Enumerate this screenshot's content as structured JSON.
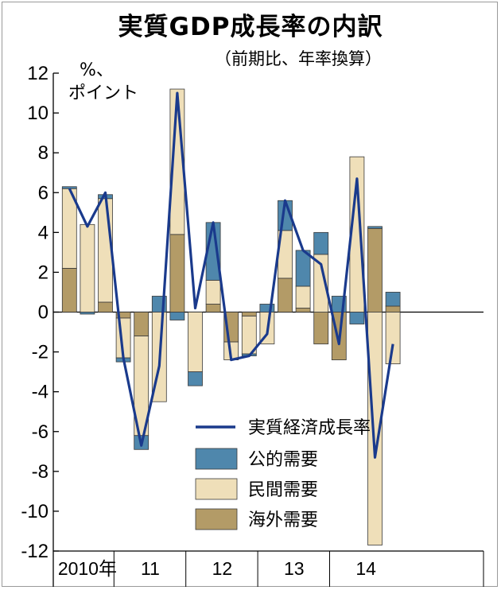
{
  "title": "実質GDP成長率の内訳",
  "subtitle": "（前期比、年率換算）",
  "chart_data": {
    "type": "bar",
    "stacked": true,
    "unit_label": [
      "%、",
      "ポイント"
    ],
    "ylim": [
      -12,
      12
    ],
    "yticks": [
      12,
      10,
      8,
      6,
      4,
      2,
      0,
      -2,
      -4,
      -6,
      -8,
      -10,
      -12
    ],
    "year_labels": [
      "2010年",
      "11",
      "12",
      "13",
      "14"
    ],
    "quarters_per_year": 4,
    "legend_placement": "bottom-center",
    "series": [
      {
        "name": "海外需要",
        "color": "#b39b67",
        "values": [
          2.2,
          0.0,
          0.5,
          -0.3,
          -1.2,
          0.0,
          3.9,
          0.0,
          0.4,
          -1.5,
          -0.2,
          0.0,
          1.7,
          0.2,
          -1.6,
          -2.4,
          0.0,
          4.2,
          0.3
        ]
      },
      {
        "name": "民間需要",
        "color": "#efdfb9",
        "values": [
          4.0,
          4.4,
          5.2,
          -2.0,
          -5.0,
          -4.5,
          7.3,
          -3.0,
          1.2,
          -0.9,
          -1.9,
          -1.6,
          2.4,
          1.1,
          2.9,
          0.0,
          7.8,
          -11.7,
          -2.6
        ]
      },
      {
        "name": "公的需要",
        "color": "#4f87ac",
        "values": [
          0.1,
          -0.1,
          0.2,
          -0.2,
          -0.7,
          0.8,
          -0.4,
          -0.7,
          2.9,
          0.0,
          -0.1,
          0.4,
          1.5,
          1.8,
          1.1,
          0.8,
          -0.6,
          0.1,
          0.7
        ]
      }
    ],
    "line": {
      "name": "実質経済成長率",
      "color": "#1a3a8c",
      "values": [
        6.2,
        4.3,
        6.0,
        -2.3,
        -6.7,
        -2.7,
        11.0,
        0.2,
        4.5,
        -2.4,
        -2.2,
        -1.1,
        5.6,
        3.1,
        2.4,
        -1.6,
        6.7,
        -7.3,
        -1.6
      ]
    }
  }
}
